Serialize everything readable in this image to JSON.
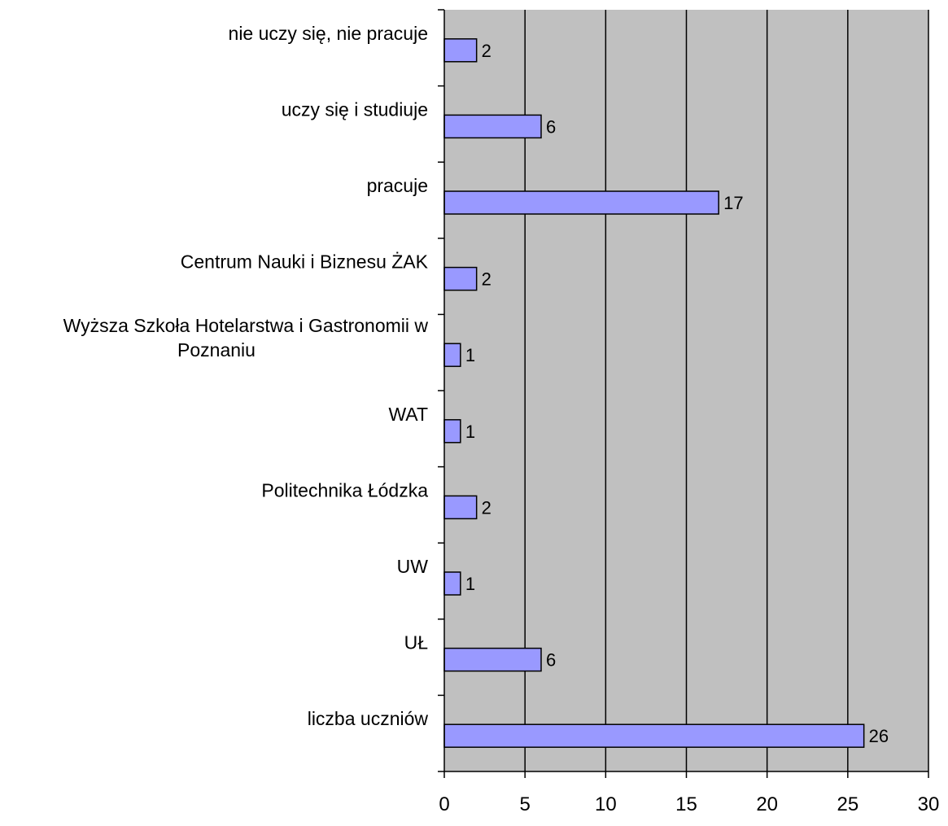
{
  "chart_data": {
    "type": "bar",
    "orientation": "horizontal",
    "title": "",
    "xlabel": "",
    "ylabel": "",
    "categories": [
      [
        "nie uczy się, nie pracuje"
      ],
      [
        "uczy się i studiuje"
      ],
      [
        "pracuje"
      ],
      [
        "Centrum Nauki i Biznesu ŻAK"
      ],
      [
        "Wyższa Szkoła Hotelarstwa i Gastronomii w",
        "Poznaniu"
      ],
      [
        "WAT"
      ],
      [
        "Politechnika Łódzka"
      ],
      [
        "UW"
      ],
      [
        "UŁ"
      ],
      [
        "liczba uczniów"
      ]
    ],
    "values": [
      2,
      6,
      17,
      2,
      1,
      1,
      2,
      1,
      6,
      26
    ],
    "xlim": [
      0,
      30
    ],
    "x_ticks": [
      "0",
      "5",
      "10",
      "15",
      "20",
      "25",
      "30"
    ],
    "grid": "vertical",
    "data_labels": true,
    "legend": "none",
    "colors": {
      "plot_background": "#c0c0c0",
      "bar_fill": "#9999ff",
      "bar_stroke": "#000000",
      "gridline": "#000000",
      "axis": "#000000"
    }
  }
}
